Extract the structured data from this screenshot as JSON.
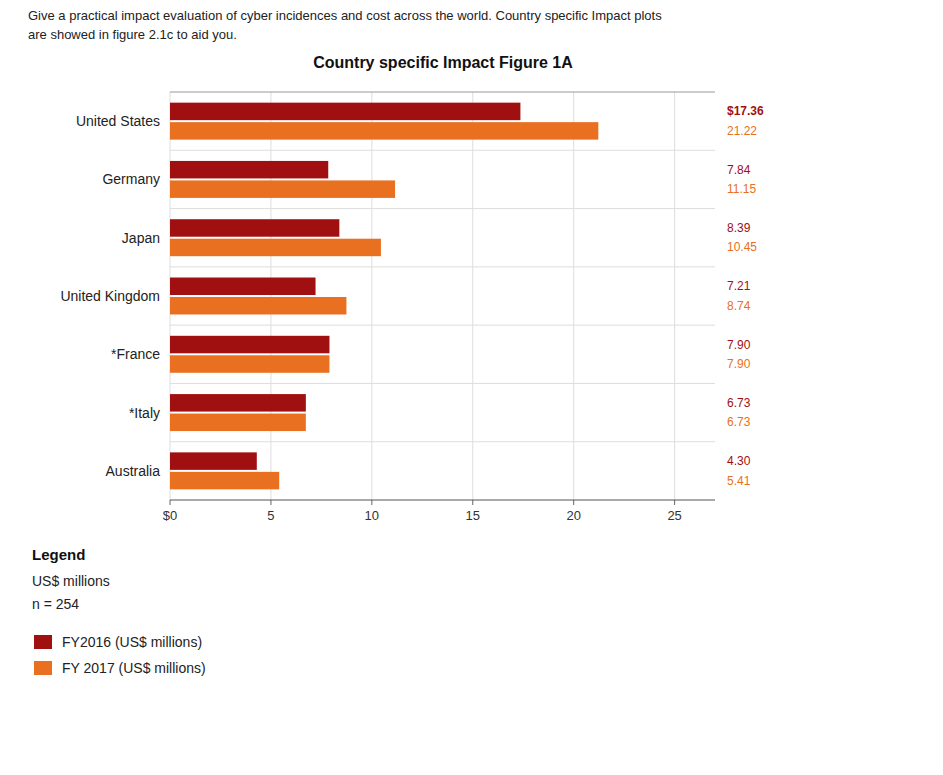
{
  "chart_data": {
    "type": "bar",
    "orientation": "horizontal",
    "title": "Country specific Impact Figure 1A",
    "annotations": [
      "Give a practical impact evaluation of cyber incidences and cost across the world. Country specific Impact plots",
      "are showed in figure 2.1c to aid you.",
      "US$ millions",
      "n = 254"
    ],
    "legend_title": "Legend",
    "categories": [
      "United States",
      "Germany",
      "Japan",
      "United Kingdom",
      "*France",
      "*Italy",
      "Australia"
    ],
    "series": [
      {
        "name": "FY2016 (US$ millions)",
        "color": "#A01010",
        "values": [
          17.36,
          7.84,
          8.39,
          7.21,
          7.9,
          6.73,
          4.3
        ],
        "value_labels": [
          "$17.36",
          "7.84",
          "8.39",
          "7.21",
          "7.90",
          "6.73",
          "4.30"
        ]
      },
      {
        "name": "FY 2017 (US$ millions)",
        "color": "#E87020",
        "values": [
          21.22,
          11.15,
          10.45,
          8.74,
          7.9,
          6.73,
          5.41
        ],
        "value_labels": [
          "21.22",
          "11.15",
          "10.45",
          "8.74",
          "7.90",
          "6.73",
          "5.41"
        ]
      }
    ],
    "xlim": [
      0,
      27
    ],
    "xticks": [
      {
        "value": 0,
        "label": "$0"
      },
      5,
      10,
      15,
      20,
      25
    ],
    "grid": true,
    "data_labels": true,
    "legend": "bottom"
  }
}
